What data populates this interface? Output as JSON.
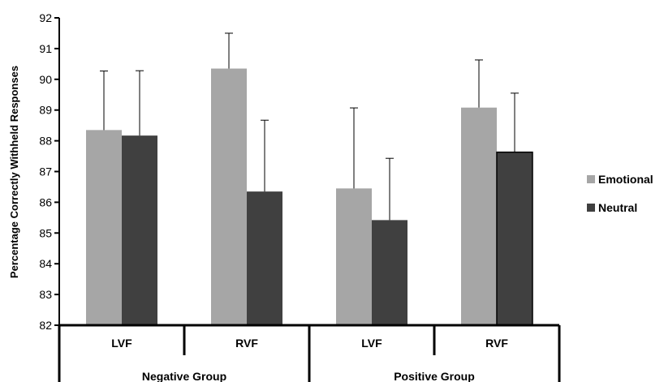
{
  "chart_data": {
    "type": "bar",
    "title": "",
    "xlabel": "",
    "ylabel": "Percentage Correctly Withheld Responses",
    "ylim": [
      82,
      92
    ],
    "yticks": [
      82,
      83,
      84,
      85,
      86,
      87,
      88,
      89,
      90,
      91,
      92
    ],
    "grid": false,
    "legend_position": "right",
    "groups": [
      "Negative Group",
      "Positive Group"
    ],
    "categories": [
      "LVF",
      "RVF",
      "LVF",
      "RVF"
    ],
    "series": [
      {
        "name": "Emotional",
        "color": "#a6a6a6",
        "values": [
          88.35,
          90.35,
          86.45,
          89.08
        ],
        "error_upper": [
          90.27,
          91.5,
          89.07,
          90.63
        ]
      },
      {
        "name": "Neutral",
        "color": "#404040",
        "values": [
          88.17,
          86.35,
          85.42,
          87.63
        ],
        "error_upper": [
          90.28,
          88.67,
          87.43,
          89.55
        ]
      }
    ]
  }
}
